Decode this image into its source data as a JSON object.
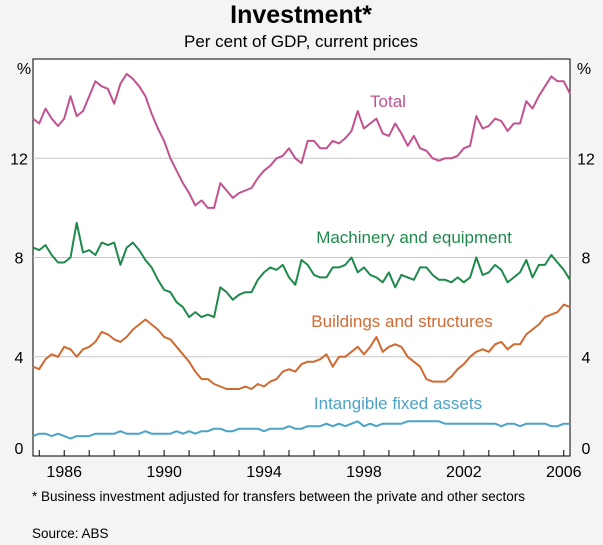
{
  "chart_data": {
    "type": "line",
    "title": "Investment*",
    "subtitle": "Per cent of GDP, current prices",
    "y_unit_left": "%",
    "y_unit_right": "%",
    "ylim": [
      0,
      16
    ],
    "xlim": [
      1984.75,
      2006.25
    ],
    "y_ticks": [
      0,
      4,
      8,
      12
    ],
    "x_ticks": [
      1986,
      1990,
      1994,
      1998,
      2002,
      2006
    ],
    "x_tick_labels": [
      "1986",
      "1990",
      "1994",
      "1998",
      "2002",
      "2006"
    ],
    "grid": true,
    "legend": "labels placed next to series",
    "series": [
      {
        "name": "Total",
        "color": "#c2528f",
        "x": [
          1984.75,
          1985,
          1985.25,
          1985.5,
          1985.75,
          1986,
          1986.25,
          1986.5,
          1986.75,
          1987,
          1987.25,
          1987.5,
          1987.75,
          1988,
          1988.25,
          1988.5,
          1988.75,
          1989,
          1989.25,
          1989.5,
          1989.75,
          1990,
          1990.25,
          1990.5,
          1990.75,
          1991,
          1991.25,
          1991.5,
          1991.75,
          1992,
          1992.25,
          1992.5,
          1992.75,
          1993,
          1993.25,
          1993.5,
          1993.75,
          1994,
          1994.25,
          1994.5,
          1994.75,
          1995,
          1995.25,
          1995.5,
          1995.75,
          1996,
          1996.25,
          1996.5,
          1996.75,
          1997,
          1997.25,
          1997.5,
          1997.75,
          1998,
          1998.25,
          1998.5,
          1998.75,
          1999,
          1999.25,
          1999.5,
          1999.75,
          2000,
          2000.25,
          2000.5,
          2000.75,
          2001,
          2001.25,
          2001.5,
          2001.75,
          2002,
          2002.25,
          2002.5,
          2002.75,
          2003,
          2003.25,
          2003.5,
          2003.75,
          2004,
          2004.25,
          2004.5,
          2004.75,
          2005,
          2005.25,
          2005.5,
          2005.75,
          2006,
          2006.25
        ],
        "values": [
          13.6,
          13.4,
          14.0,
          13.6,
          13.3,
          13.6,
          14.5,
          13.7,
          13.9,
          14.5,
          15.1,
          14.9,
          14.8,
          14.2,
          15.0,
          15.4,
          15.2,
          14.9,
          14.5,
          13.8,
          13.2,
          12.7,
          12.0,
          11.5,
          11.0,
          10.6,
          10.1,
          10.3,
          10.0,
          10.0,
          11.0,
          10.7,
          10.4,
          10.6,
          10.7,
          10.8,
          11.2,
          11.5,
          11.7,
          12.0,
          12.1,
          12.4,
          12.0,
          11.8,
          12.7,
          12.7,
          12.4,
          12.4,
          12.7,
          12.6,
          12.8,
          13.1,
          13.9,
          13.2,
          13.4,
          13.6,
          13.0,
          12.9,
          13.4,
          13.0,
          12.5,
          12.9,
          12.4,
          12.3,
          12.0,
          11.9,
          12.0,
          12.0,
          12.1,
          12.4,
          12.5,
          13.7,
          13.2,
          13.3,
          13.6,
          13.5,
          13.1,
          13.4,
          13.4,
          14.3,
          14.0,
          14.5,
          14.9,
          15.3,
          15.1,
          15.1,
          14.6
        ]
      },
      {
        "name": "Machinery and equipment",
        "color": "#1f8a4c",
        "x": [
          1984.75,
          1985,
          1985.25,
          1985.5,
          1985.75,
          1986,
          1986.25,
          1986.5,
          1986.75,
          1987,
          1987.25,
          1987.5,
          1987.75,
          1988,
          1988.25,
          1988.5,
          1988.75,
          1989,
          1989.25,
          1989.5,
          1989.75,
          1990,
          1990.25,
          1990.5,
          1990.75,
          1991,
          1991.25,
          1991.5,
          1991.75,
          1992,
          1992.25,
          1992.5,
          1992.75,
          1993,
          1993.25,
          1993.5,
          1993.75,
          1994,
          1994.25,
          1994.5,
          1994.75,
          1995,
          1995.25,
          1995.5,
          1995.75,
          1996,
          1996.25,
          1996.5,
          1996.75,
          1997,
          1997.25,
          1997.5,
          1997.75,
          1998,
          1998.25,
          1998.5,
          1998.75,
          1999,
          1999.25,
          1999.5,
          1999.75,
          2000,
          2000.25,
          2000.5,
          2000.75,
          2001,
          2001.25,
          2001.5,
          2001.75,
          2002,
          2002.25,
          2002.5,
          2002.75,
          2003,
          2003.25,
          2003.5,
          2003.75,
          2004,
          2004.25,
          2004.5,
          2004.75,
          2005,
          2005.25,
          2005.5,
          2005.75,
          2006,
          2006.25
        ],
        "values": [
          8.4,
          8.3,
          8.5,
          8.1,
          7.8,
          7.8,
          8.0,
          9.4,
          8.2,
          8.3,
          8.1,
          8.6,
          8.5,
          8.6,
          7.7,
          8.4,
          8.6,
          8.3,
          7.9,
          7.6,
          7.1,
          6.7,
          6.6,
          6.2,
          6.0,
          5.6,
          5.8,
          5.6,
          5.7,
          5.6,
          6.8,
          6.6,
          6.3,
          6.5,
          6.6,
          6.6,
          7.1,
          7.4,
          7.6,
          7.5,
          7.7,
          7.2,
          6.9,
          7.9,
          7.7,
          7.3,
          7.2,
          7.2,
          7.6,
          7.6,
          7.7,
          8.0,
          7.4,
          7.6,
          7.3,
          7.2,
          7.0,
          7.4,
          6.8,
          7.3,
          7.2,
          7.1,
          7.6,
          7.6,
          7.3,
          7.1,
          7.1,
          7.0,
          7.2,
          7.0,
          7.2,
          8.0,
          7.3,
          7.4,
          7.7,
          7.5,
          7.0,
          7.2,
          7.4,
          7.9,
          7.2,
          7.7,
          7.7,
          8.1,
          7.8,
          7.5,
          7.1
        ]
      },
      {
        "name": "Buildings and structures",
        "color": "#d06a31",
        "x": [
          1984.75,
          1985,
          1985.25,
          1985.5,
          1985.75,
          1986,
          1986.25,
          1986.5,
          1986.75,
          1987,
          1987.25,
          1987.5,
          1987.75,
          1988,
          1988.25,
          1988.5,
          1988.75,
          1989,
          1989.25,
          1989.5,
          1989.75,
          1990,
          1990.25,
          1990.5,
          1990.75,
          1991,
          1991.25,
          1991.5,
          1991.75,
          1992,
          1992.25,
          1992.5,
          1992.75,
          1993,
          1993.25,
          1993.5,
          1993.75,
          1994,
          1994.25,
          1994.5,
          1994.75,
          1995,
          1995.25,
          1995.5,
          1995.75,
          1996,
          1996.25,
          1996.5,
          1996.75,
          1997,
          1997.25,
          1997.5,
          1997.75,
          1998,
          1998.25,
          1998.5,
          1998.75,
          1999,
          1999.25,
          1999.5,
          1999.75,
          2000,
          2000.25,
          2000.5,
          2000.75,
          2001,
          2001.25,
          2001.5,
          2001.75,
          2002,
          2002.25,
          2002.5,
          2002.75,
          2003,
          2003.25,
          2003.5,
          2003.75,
          2004,
          2004.25,
          2004.5,
          2004.75,
          2005,
          2005.25,
          2005.5,
          2005.75,
          2006,
          2006.25
        ],
        "values": [
          3.6,
          3.5,
          3.9,
          4.1,
          4.0,
          4.4,
          4.3,
          4.0,
          4.3,
          4.4,
          4.6,
          5.0,
          4.9,
          4.7,
          4.6,
          4.8,
          5.1,
          5.3,
          5.5,
          5.3,
          5.1,
          4.8,
          4.7,
          4.4,
          4.1,
          3.8,
          3.4,
          3.1,
          3.1,
          2.9,
          2.8,
          2.7,
          2.7,
          2.7,
          2.8,
          2.7,
          2.9,
          2.8,
          3.0,
          3.1,
          3.4,
          3.5,
          3.4,
          3.7,
          3.8,
          3.8,
          3.9,
          4.1,
          3.6,
          4.0,
          4.0,
          4.2,
          4.4,
          4.1,
          4.4,
          4.8,
          4.2,
          4.4,
          4.5,
          4.4,
          4.0,
          3.8,
          3.6,
          3.1,
          3.0,
          3.0,
          3.0,
          3.2,
          3.5,
          3.7,
          4.0,
          4.2,
          4.3,
          4.2,
          4.5,
          4.6,
          4.3,
          4.5,
          4.5,
          4.9,
          5.1,
          5.3,
          5.6,
          5.7,
          5.8,
          6.1,
          6.0
        ]
      },
      {
        "name": "Intangible fixed assets",
        "color": "#4ba3c7",
        "x": [
          1984.75,
          1985,
          1985.25,
          1985.5,
          1985.75,
          1986,
          1986.25,
          1986.5,
          1986.75,
          1987,
          1987.25,
          1987.5,
          1987.75,
          1988,
          1988.25,
          1988.5,
          1988.75,
          1989,
          1989.25,
          1989.5,
          1989.75,
          1990,
          1990.25,
          1990.5,
          1990.75,
          1991,
          1991.25,
          1991.5,
          1991.75,
          1992,
          1992.25,
          1992.5,
          1992.75,
          1993,
          1993.25,
          1993.5,
          1993.75,
          1994,
          1994.25,
          1994.5,
          1994.75,
          1995,
          1995.25,
          1995.5,
          1995.75,
          1996,
          1996.25,
          1996.5,
          1996.75,
          1997,
          1997.25,
          1997.5,
          1997.75,
          1998,
          1998.25,
          1998.5,
          1998.75,
          1999,
          1999.25,
          1999.5,
          1999.75,
          2000,
          2000.25,
          2000.5,
          2000.75,
          2001,
          2001.25,
          2001.5,
          2001.75,
          2002,
          2002.25,
          2002.5,
          2002.75,
          2003,
          2003.25,
          2003.5,
          2003.75,
          2004,
          2004.25,
          2004.5,
          2004.75,
          2005,
          2005.25,
          2005.5,
          2005.75,
          2006,
          2006.25
        ],
        "values": [
          0.8,
          0.9,
          0.9,
          0.8,
          0.9,
          0.8,
          0.7,
          0.8,
          0.8,
          0.8,
          0.9,
          0.9,
          0.9,
          0.9,
          1.0,
          0.9,
          0.9,
          0.9,
          1.0,
          0.9,
          0.9,
          0.9,
          0.9,
          1.0,
          0.9,
          1.0,
          0.9,
          1.0,
          1.0,
          1.1,
          1.1,
          1.0,
          1.0,
          1.1,
          1.1,
          1.1,
          1.1,
          1.0,
          1.1,
          1.1,
          1.1,
          1.2,
          1.1,
          1.1,
          1.2,
          1.2,
          1.2,
          1.3,
          1.2,
          1.3,
          1.2,
          1.3,
          1.4,
          1.2,
          1.3,
          1.2,
          1.3,
          1.3,
          1.3,
          1.3,
          1.4,
          1.4,
          1.4,
          1.4,
          1.4,
          1.4,
          1.3,
          1.3,
          1.3,
          1.3,
          1.3,
          1.3,
          1.3,
          1.3,
          1.3,
          1.2,
          1.3,
          1.3,
          1.2,
          1.3,
          1.3,
          1.3,
          1.3,
          1.2,
          1.2,
          1.3,
          1.3
        ]
      }
    ]
  },
  "footnotes": {
    "note": "*  Business investment adjusted for transfers between the private and other sectors",
    "source": "Source: ABS"
  }
}
